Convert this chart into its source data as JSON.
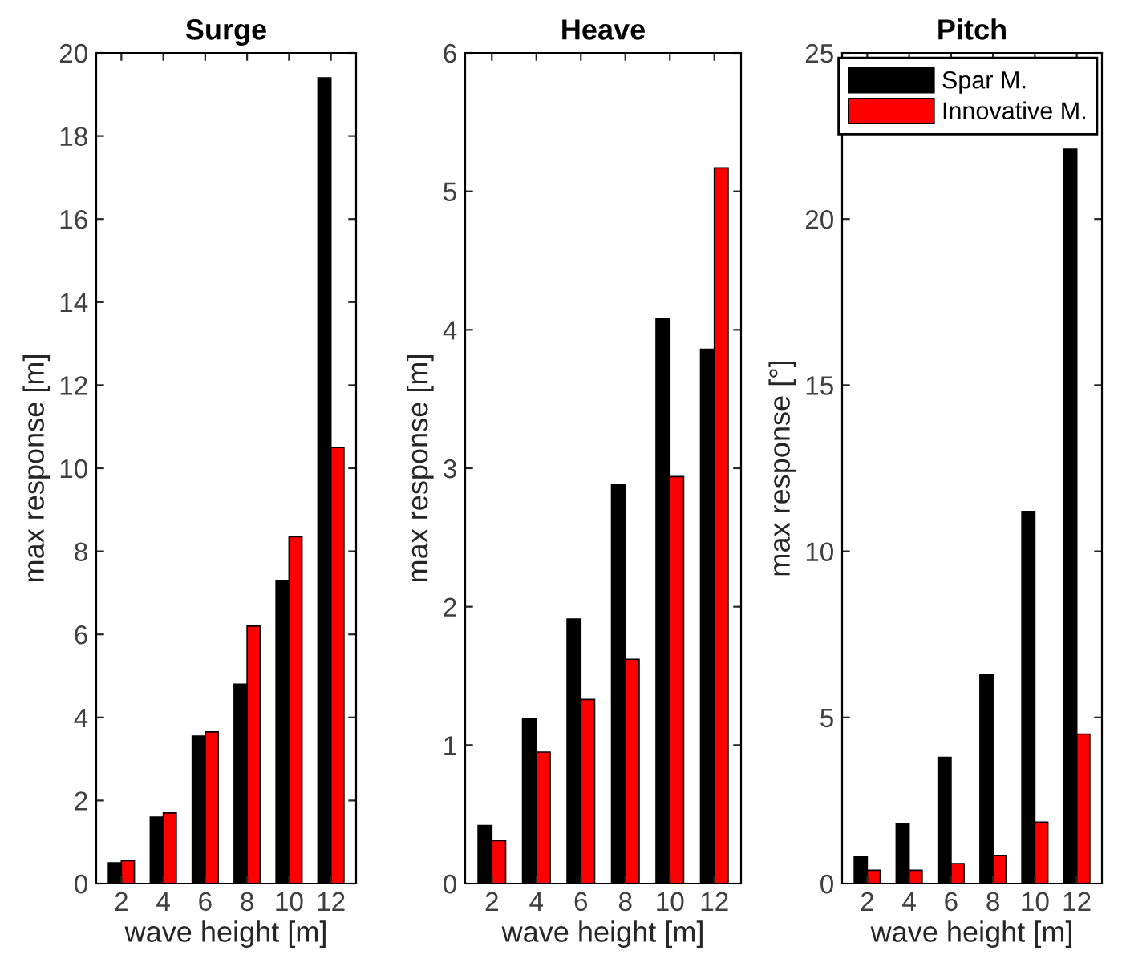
{
  "chart_data": [
    {
      "type": "bar",
      "title": "Surge",
      "xlabel": "wave height [m]",
      "ylabel": "max response [m]",
      "categories": [
        "2",
        "4",
        "6",
        "8",
        "10",
        "12"
      ],
      "ylim": [
        0,
        20
      ],
      "yticks": [
        0,
        2,
        4,
        6,
        8,
        10,
        12,
        14,
        16,
        18,
        20
      ],
      "grid": false,
      "legend": false,
      "series": [
        {
          "color": "#000000",
          "values": [
            0.5,
            1.6,
            3.55,
            4.8,
            7.3,
            19.4
          ]
        },
        {
          "color": "#ff0000",
          "values": [
            0.55,
            1.7,
            3.65,
            6.2,
            8.35,
            10.5
          ]
        }
      ]
    },
    {
      "type": "bar",
      "title": "Heave",
      "xlabel": "wave height [m]",
      "ylabel": "max response [m]",
      "categories": [
        "2",
        "4",
        "6",
        "8",
        "10",
        "12"
      ],
      "ylim": [
        0,
        6
      ],
      "yticks": [
        0,
        1,
        2,
        3,
        4,
        5,
        6
      ],
      "grid": false,
      "legend": false,
      "series": [
        {
          "color": "#000000",
          "values": [
            0.42,
            1.19,
            1.91,
            2.88,
            4.08,
            3.86
          ]
        },
        {
          "color": "#ff0000",
          "values": [
            0.31,
            0.95,
            1.33,
            1.62,
            2.94,
            5.17
          ]
        }
      ]
    },
    {
      "type": "bar",
      "title": "Pitch",
      "xlabel": "wave height [m]",
      "ylabel": "max response [°]",
      "categories": [
        "2",
        "4",
        "6",
        "8",
        "10",
        "12"
      ],
      "ylim": [
        0,
        25
      ],
      "yticks": [
        0,
        5,
        10,
        15,
        20,
        25
      ],
      "grid": false,
      "legend": "top right",
      "series": [
        {
          "name": "Spar M.",
          "color": "#000000",
          "values": [
            0.8,
            1.8,
            3.8,
            6.3,
            11.2,
            22.1
          ]
        },
        {
          "name": "Innovative M.",
          "color": "#ff0000",
          "values": [
            0.4,
            0.4,
            0.6,
            0.85,
            1.85,
            4.5
          ]
        }
      ]
    }
  ]
}
